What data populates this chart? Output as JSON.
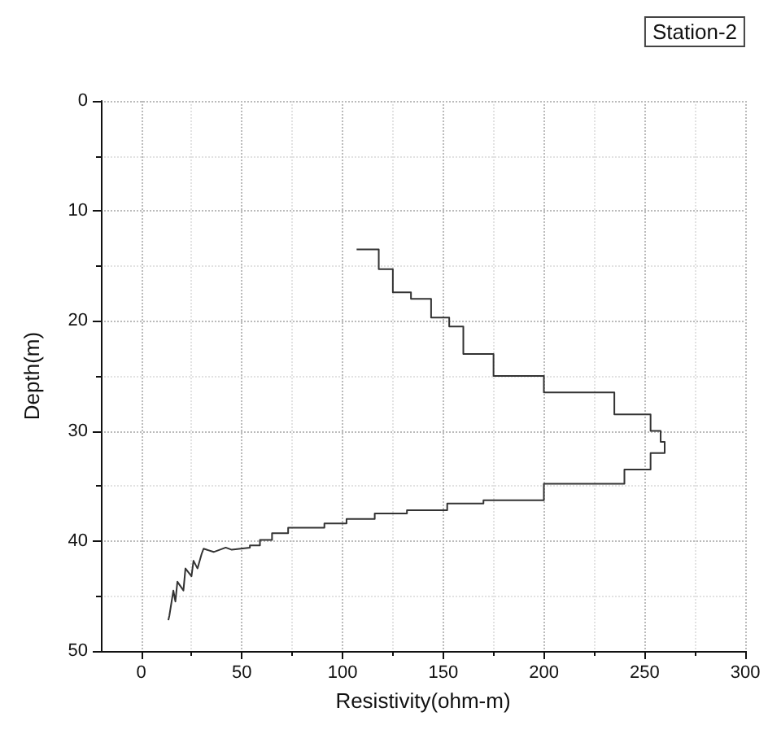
{
  "chart_data": {
    "type": "step",
    "title": "Station-2",
    "xlabel": "Resistivity(ohm-m)",
    "ylabel": "Depth(m)",
    "xlim": [
      -20,
      300
    ],
    "xticks": [
      0,
      50,
      100,
      150,
      200,
      250,
      300
    ],
    "ylim": [
      50,
      0
    ],
    "yticks": [
      0,
      10,
      20,
      30,
      40,
      50
    ],
    "grid": true,
    "marker": "none",
    "line_style": "solid",
    "series": [
      {
        "color": "#333333",
        "x": [
          107,
          118,
          118,
          125,
          125,
          134,
          134,
          144,
          144,
          153,
          153,
          160,
          160,
          175,
          175,
          200,
          200,
          235,
          235,
          253,
          253,
          258,
          258,
          260,
          260,
          253,
          253,
          240,
          240,
          200,
          200,
          170,
          170,
          152,
          152,
          132,
          132,
          116,
          116,
          102,
          102,
          91,
          91,
          73,
          73,
          65,
          65,
          59,
          59,
          54,
          54,
          45,
          42,
          36,
          31,
          30,
          28,
          26,
          25,
          22,
          21,
          18,
          17,
          16,
          14,
          13.5
        ],
        "values": [
          13.5,
          13.5,
          15.3,
          15.3,
          17.4,
          17.4,
          18,
          18,
          19.7,
          19.7,
          20.5,
          20.5,
          23,
          23,
          25,
          25,
          26.5,
          26.5,
          28.5,
          28.5,
          30,
          30,
          31,
          31,
          32,
          32,
          33.5,
          33.5,
          34.8,
          34.8,
          36.3,
          36.3,
          36.6,
          36.6,
          37.2,
          37.2,
          37.5,
          37.5,
          38,
          38,
          38.4,
          38.4,
          38.8,
          38.8,
          39.3,
          39.3,
          39.9,
          39.9,
          40.4,
          40.4,
          40.6,
          40.8,
          40.6,
          41,
          40.7,
          41.2,
          42.5,
          41.8,
          43.2,
          42.5,
          44.5,
          43.7,
          45.5,
          44.5,
          46.8,
          47.2
        ]
      }
    ]
  }
}
